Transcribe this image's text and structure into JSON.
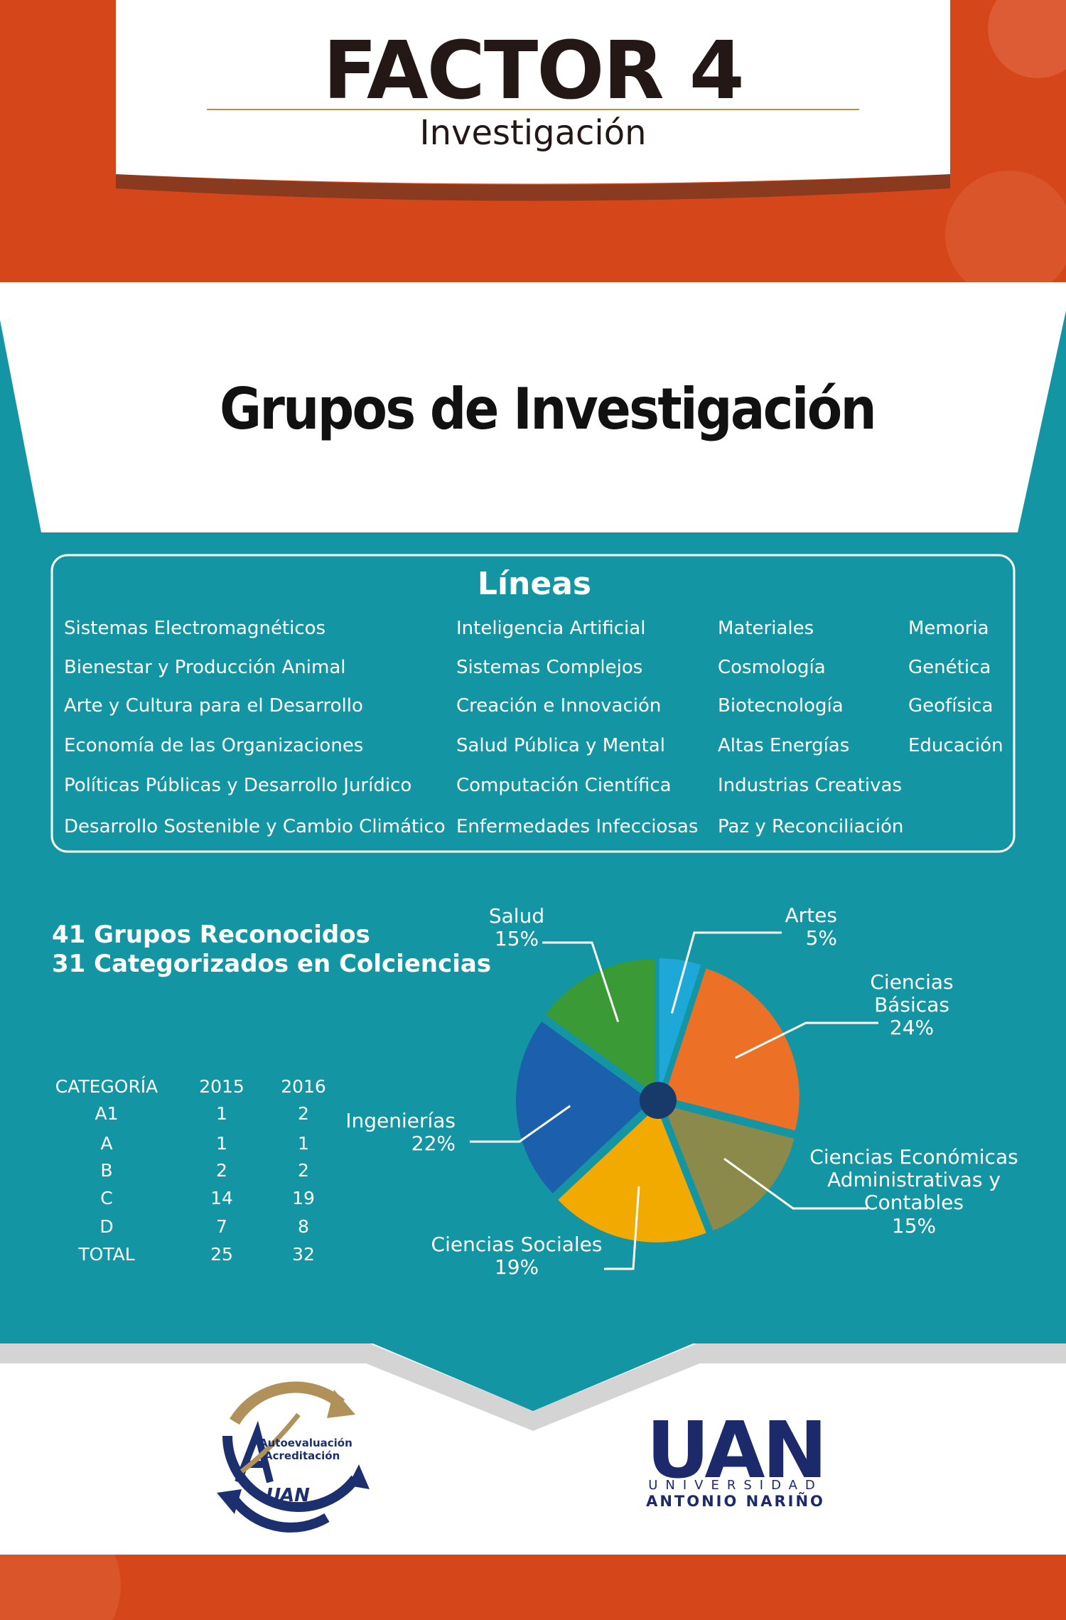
{
  "header": {
    "title": "FACTOR 4",
    "subtitle": "Investigación"
  },
  "section_title": "Grupos de Investigación",
  "lines": {
    "title": "Líneas",
    "columns": [
      [
        "Sistemas Electromagnéticos",
        "Bienestar y Producción Animal",
        "Arte y Cultura para el Desarrollo",
        "Economía de las Organizaciones",
        "Políticas Públicas y Desarrollo Jurídico",
        "Desarrollo  Sostenible y Cambio Climático"
      ],
      [
        "Inteligencia Artificial",
        "Sistemas Complejos",
        "Creación e Innovación",
        "Salud Pública y Mental",
        "Computación Científica",
        "Enfermedades Infecciosas"
      ],
      [
        "Materiales",
        "Cosmología",
        "Biotecnología",
        "Altas Energías",
        "Industrias Creativas",
        "Paz y Reconciliación"
      ],
      [
        "Memoria",
        "Genética",
        "Geofísica",
        "Educación"
      ]
    ]
  },
  "summary": [
    "41 Grupos Reconocidos",
    "31 Categorizados en Colciencias"
  ],
  "table": {
    "header": [
      "CATEGORÍA",
      "2015",
      "2016"
    ],
    "rows": [
      [
        "A1",
        1,
        2
      ],
      [
        "A",
        1,
        1
      ],
      [
        "B",
        2,
        2
      ],
      [
        "C",
        14,
        19
      ],
      [
        "D",
        7,
        8
      ],
      [
        "TOTAL",
        25,
        32
      ]
    ]
  },
  "chart_data": {
    "type": "pie",
    "categories": [
      "Artes",
      "Ciencias Básicas",
      "Ciencias Económicas Administrativas y Contables",
      "Ciencias Sociales",
      "Ingenierías",
      "Salud"
    ],
    "values": [
      5,
      24,
      15,
      19,
      22,
      15
    ],
    "value_labels": [
      "5%",
      "24%",
      "15%",
      "19%",
      "22%",
      "15%"
    ],
    "colors": [
      "#1ea8d8",
      "#ec7026",
      "#8c8a4a",
      "#f2a900",
      "#1c5fad",
      "#3a9a35"
    ]
  },
  "logos": {
    "left": [
      "Autoevaluación",
      "Acreditación",
      "UAN"
    ],
    "right": [
      "UAN",
      "UNIVERSIDAD",
      "ANTONIO NARIÑO"
    ]
  }
}
